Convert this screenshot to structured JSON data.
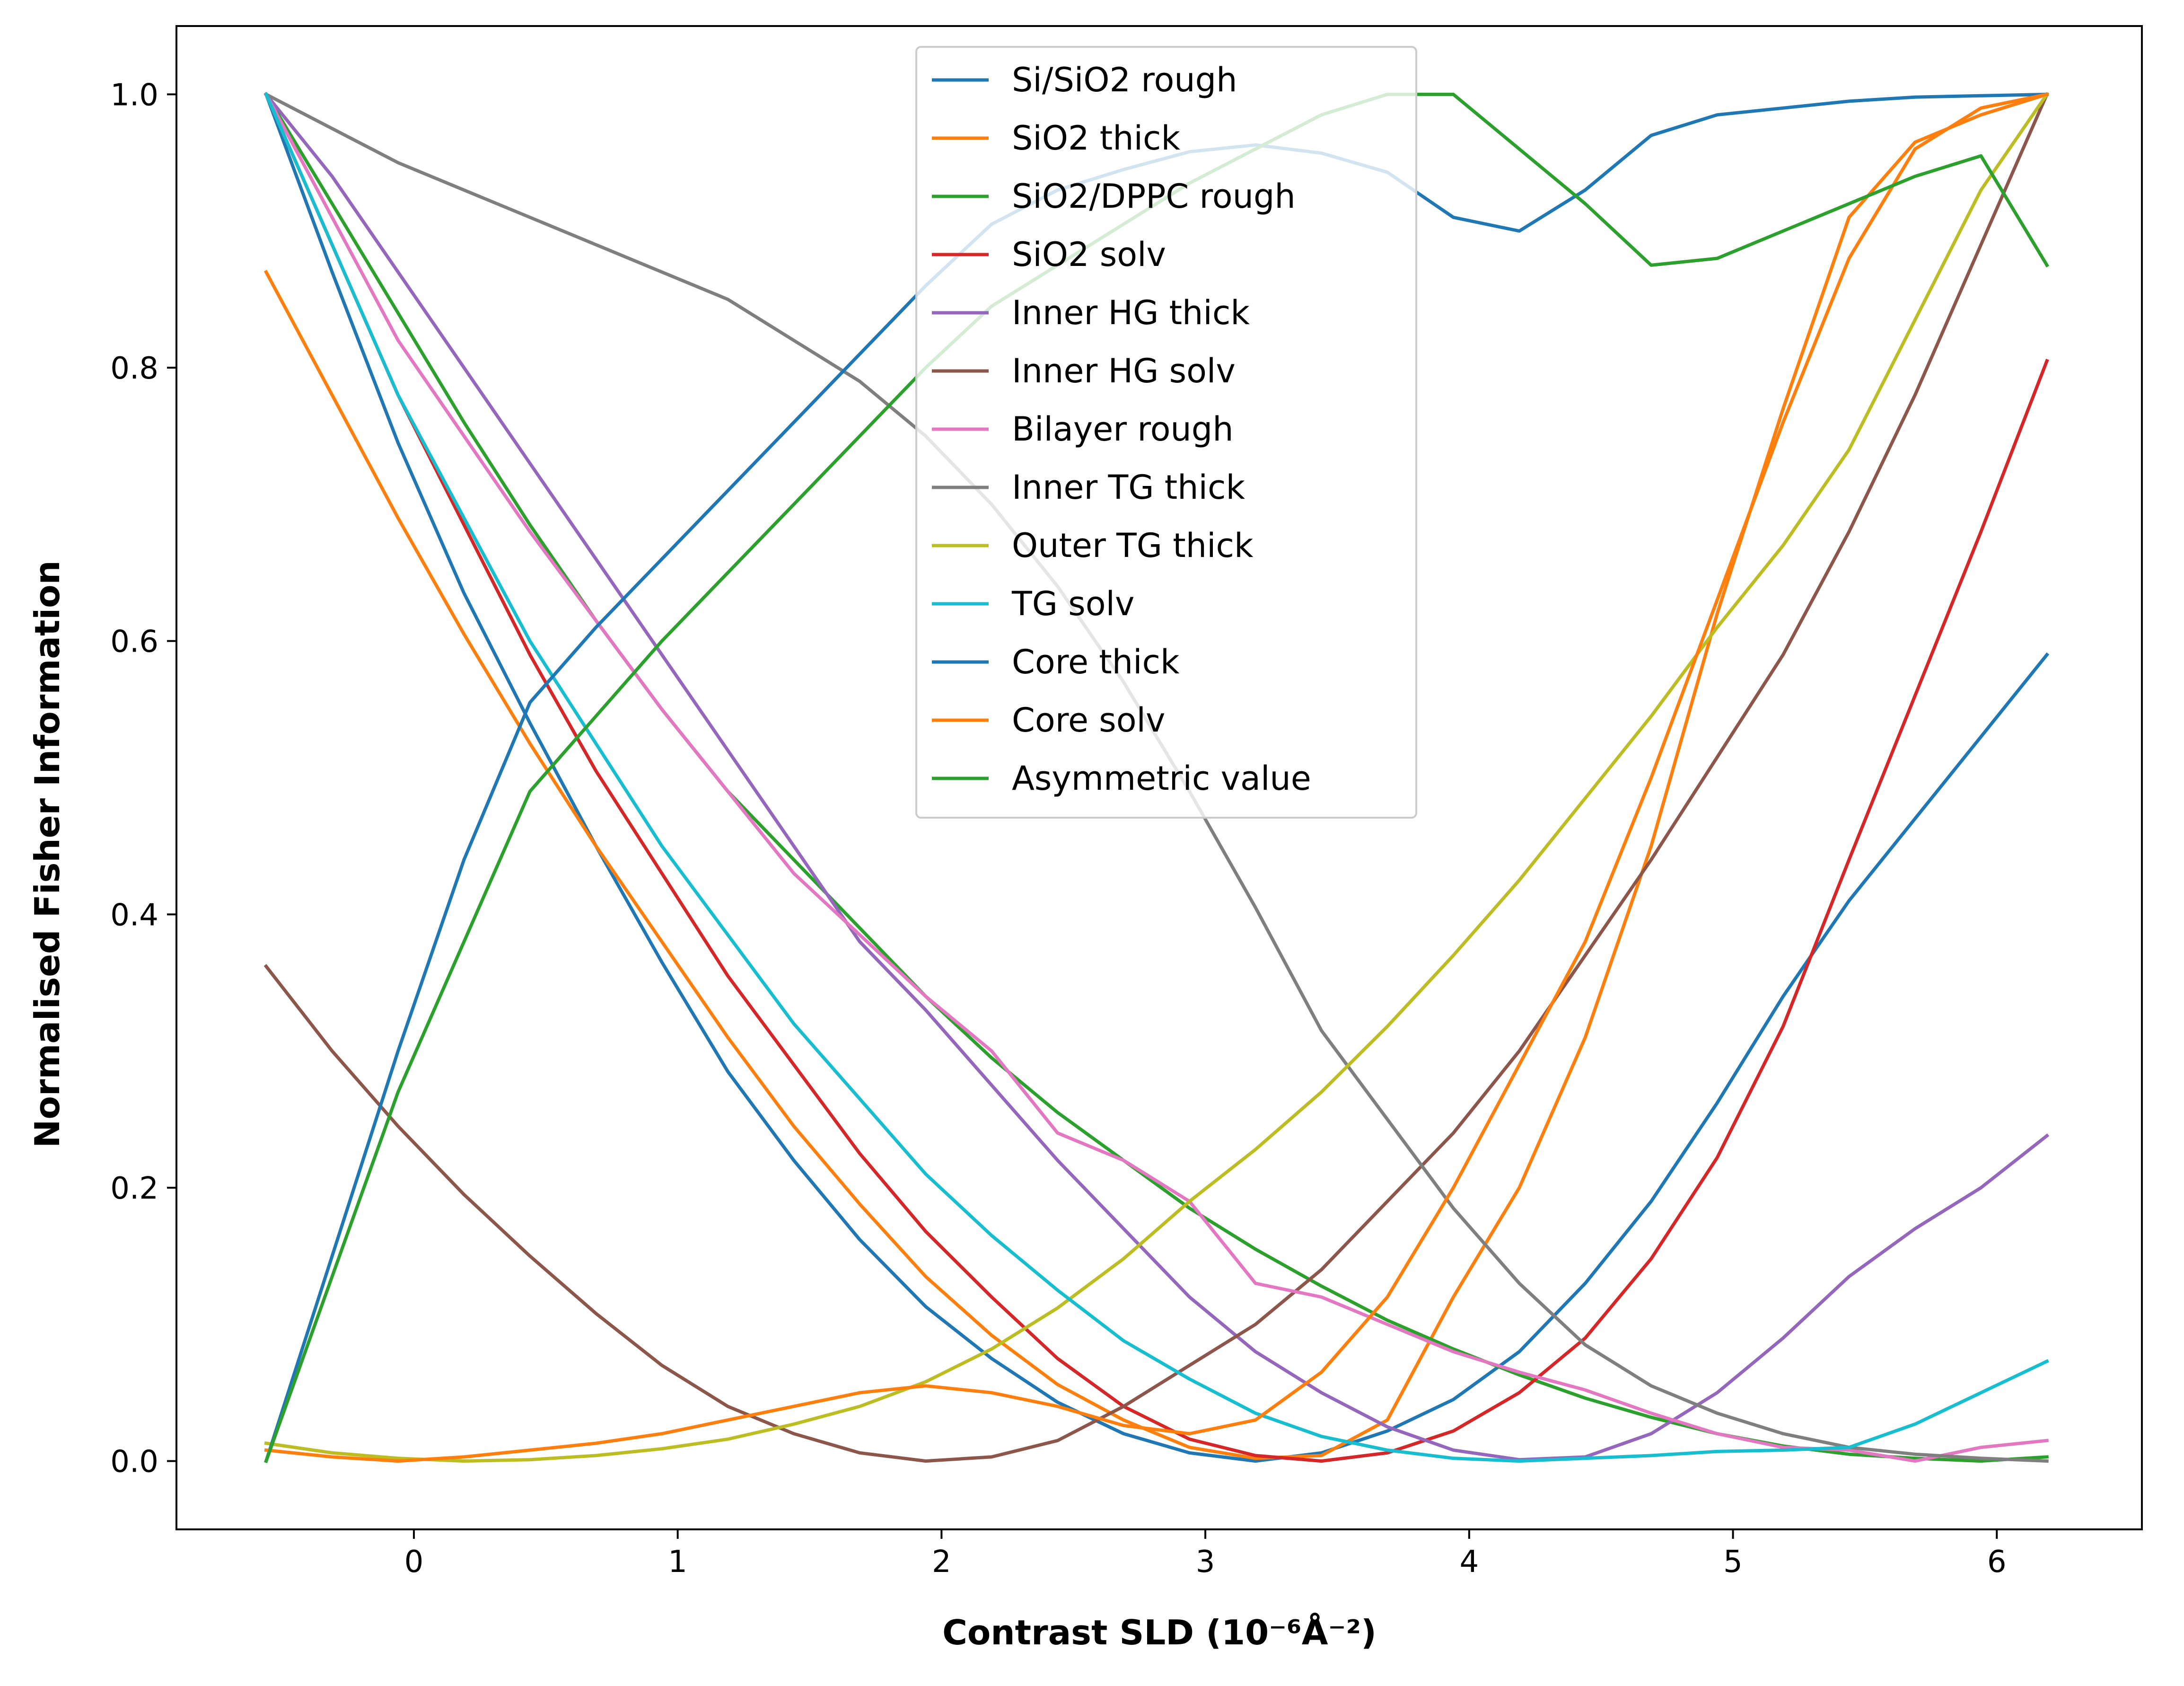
{
  "chart_data": {
    "type": "line",
    "xlabel": "Contrast SLD (10⁻⁶Å⁻²)",
    "ylabel": "Normalised Fisher Information",
    "xlim": [
      -0.9,
      6.55
    ],
    "ylim": [
      -0.05,
      1.05
    ],
    "x_ticks": [
      0,
      1,
      2,
      3,
      4,
      5,
      6
    ],
    "y_ticks": [
      0.0,
      0.2,
      0.4,
      0.6,
      0.8,
      1.0
    ],
    "grid": false,
    "legend_position": "upper-center",
    "x": [
      -0.56,
      -0.31,
      -0.06,
      0.19,
      0.44,
      0.69,
      0.94,
      1.19,
      1.44,
      1.69,
      1.94,
      2.19,
      2.44,
      2.69,
      2.94,
      3.19,
      3.44,
      3.69,
      3.94,
      4.19,
      4.44,
      4.69,
      4.94,
      5.19,
      5.44,
      5.69,
      5.94,
      6.19
    ],
    "series": [
      {
        "name": "Si/SiO2 rough",
        "color": "#1f77b4",
        "values": [
          1.0,
          0.87,
          0.745,
          0.635,
          0.54,
          0.45,
          0.365,
          0.285,
          0.22,
          0.162,
          0.113,
          0.075,
          0.043,
          0.02,
          0.006,
          0.0,
          0.006,
          0.022,
          0.045,
          0.08,
          0.13,
          0.19,
          0.262,
          0.34,
          0.41,
          0.47,
          0.53,
          0.59
        ]
      },
      {
        "name": "SiO2 thick",
        "color": "#ff7f0e",
        "values": [
          0.87,
          0.78,
          0.69,
          0.605,
          0.525,
          0.45,
          0.38,
          0.31,
          0.245,
          0.188,
          0.135,
          0.092,
          0.056,
          0.03,
          0.01,
          0.002,
          0.004,
          0.03,
          0.12,
          0.2,
          0.31,
          0.45,
          0.62,
          0.77,
          0.91,
          0.965,
          0.985,
          1.0
        ]
      },
      {
        "name": "SiO2/DPPC rough",
        "color": "#2ca02c",
        "values": [
          1.0,
          0.92,
          0.84,
          0.76,
          0.685,
          0.615,
          0.55,
          0.49,
          0.44,
          0.39,
          0.34,
          0.295,
          0.255,
          0.22,
          0.185,
          0.155,
          0.128,
          0.103,
          0.082,
          0.063,
          0.046,
          0.032,
          0.02,
          0.011,
          0.005,
          0.002,
          0.0,
          0.003
        ]
      },
      {
        "name": "SiO2 solv",
        "color": "#d62728",
        "values": [
          1.0,
          0.89,
          0.78,
          0.685,
          0.59,
          0.505,
          0.43,
          0.355,
          0.29,
          0.225,
          0.168,
          0.12,
          0.075,
          0.04,
          0.016,
          0.004,
          0.0,
          0.006,
          0.022,
          0.05,
          0.09,
          0.148,
          0.222,
          0.318,
          0.44,
          0.56,
          0.68,
          0.805
        ]
      },
      {
        "name": "Inner HG thick",
        "color": "#9467bd",
        "values": [
          1.0,
          0.94,
          0.87,
          0.8,
          0.73,
          0.66,
          0.59,
          0.52,
          0.45,
          0.38,
          0.33,
          0.275,
          0.22,
          0.17,
          0.12,
          0.08,
          0.05,
          0.025,
          0.008,
          0.001,
          0.003,
          0.02,
          0.05,
          0.09,
          0.135,
          0.17,
          0.2,
          0.238
        ]
      },
      {
        "name": "Inner HG solv",
        "color": "#8c564b",
        "values": [
          0.362,
          0.3,
          0.245,
          0.195,
          0.15,
          0.108,
          0.07,
          0.04,
          0.02,
          0.006,
          0.0,
          0.003,
          0.015,
          0.04,
          0.07,
          0.1,
          0.14,
          0.19,
          0.24,
          0.3,
          0.37,
          0.44,
          0.515,
          0.59,
          0.68,
          0.78,
          0.89,
          1.0
        ]
      },
      {
        "name": "Bilayer rough",
        "color": "#e377c2",
        "values": [
          1.0,
          0.91,
          0.82,
          0.75,
          0.68,
          0.615,
          0.55,
          0.49,
          0.43,
          0.385,
          0.34,
          0.3,
          0.24,
          0.22,
          0.19,
          0.13,
          0.12,
          0.1,
          0.08,
          0.065,
          0.052,
          0.035,
          0.02,
          0.01,
          0.008,
          0.0,
          0.01,
          0.015
        ]
      },
      {
        "name": "Inner TG thick",
        "color": "#7f7f7f",
        "values": [
          1.0,
          0.975,
          0.95,
          0.93,
          0.91,
          0.89,
          0.87,
          0.85,
          0.82,
          0.79,
          0.75,
          0.7,
          0.64,
          0.57,
          0.49,
          0.405,
          0.315,
          0.25,
          0.185,
          0.13,
          0.085,
          0.055,
          0.035,
          0.02,
          0.01,
          0.005,
          0.002,
          0.0
        ]
      },
      {
        "name": "Outer TG thick",
        "color": "#bcbd22",
        "values": [
          0.013,
          0.006,
          0.002,
          0.0,
          0.001,
          0.004,
          0.009,
          0.016,
          0.027,
          0.04,
          0.058,
          0.082,
          0.112,
          0.148,
          0.19,
          0.228,
          0.27,
          0.318,
          0.37,
          0.425,
          0.485,
          0.545,
          0.61,
          0.67,
          0.74,
          0.835,
          0.93,
          1.0
        ]
      },
      {
        "name": "TG solv",
        "color": "#17becf",
        "values": [
          1.0,
          0.89,
          0.78,
          0.69,
          0.6,
          0.525,
          0.45,
          0.385,
          0.32,
          0.265,
          0.21,
          0.165,
          0.125,
          0.088,
          0.06,
          0.035,
          0.018,
          0.008,
          0.002,
          0.0,
          0.002,
          0.004,
          0.007,
          0.008,
          0.01,
          0.027,
          0.05,
          0.073
        ]
      },
      {
        "name": "Core thick",
        "color": "#1f77b4",
        "values": [
          0.0,
          0.15,
          0.3,
          0.44,
          0.555,
          0.61,
          0.66,
          0.71,
          0.76,
          0.81,
          0.86,
          0.905,
          0.93,
          0.945,
          0.958,
          0.963,
          0.957,
          0.943,
          0.91,
          0.9,
          0.93,
          0.97,
          0.985,
          0.99,
          0.995,
          0.998,
          0.999,
          1.0
        ]
      },
      {
        "name": "Core solv",
        "color": "#ff7f0e",
        "values": [
          0.008,
          0.003,
          0.0,
          0.003,
          0.008,
          0.013,
          0.02,
          0.03,
          0.04,
          0.05,
          0.055,
          0.05,
          0.04,
          0.026,
          0.02,
          0.03,
          0.065,
          0.12,
          0.2,
          0.29,
          0.38,
          0.5,
          0.63,
          0.76,
          0.88,
          0.96,
          0.99,
          1.0
        ]
      },
      {
        "name": "Asymmetric value",
        "color": "#2ca02c",
        "values": [
          0.0,
          0.135,
          0.27,
          0.38,
          0.49,
          0.545,
          0.6,
          0.65,
          0.7,
          0.75,
          0.8,
          0.845,
          0.875,
          0.905,
          0.935,
          0.96,
          0.985,
          1.0,
          1.0,
          0.96,
          0.92,
          0.875,
          0.88,
          0.9,
          0.92,
          0.94,
          0.955,
          0.875
        ]
      }
    ]
  }
}
